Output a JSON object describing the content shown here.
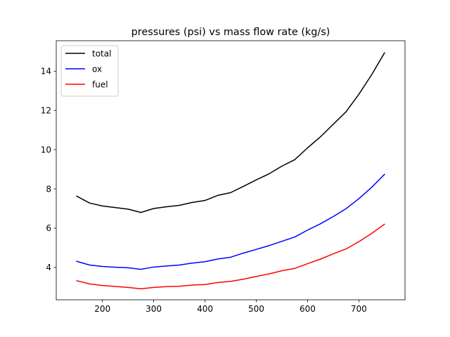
{
  "chart_data": {
    "type": "line",
    "title": "pressures (psi) vs mass flow rate (kg/s)",
    "xlabel": "",
    "ylabel": "",
    "xlim": [
      110,
      790
    ],
    "ylim": [
      2.35,
      15.55
    ],
    "xticks": [
      200,
      300,
      400,
      500,
      600,
      700
    ],
    "yticks": [
      4,
      6,
      8,
      10,
      12,
      14
    ],
    "grid": false,
    "legend_position": "top-left",
    "x": [
      150,
      175,
      200,
      225,
      250,
      275,
      300,
      325,
      350,
      375,
      400,
      425,
      450,
      475,
      500,
      525,
      550,
      575,
      600,
      625,
      650,
      675,
      700,
      725,
      750
    ],
    "series": [
      {
        "name": "total",
        "color": "#000000",
        "values": [
          7.63,
          7.28,
          7.13,
          7.05,
          6.97,
          6.8,
          7.0,
          7.09,
          7.16,
          7.31,
          7.41,
          7.67,
          7.81,
          8.13,
          8.46,
          8.77,
          9.16,
          9.49,
          10.09,
          10.65,
          11.29,
          11.93,
          12.82,
          13.82,
          14.93
        ]
      },
      {
        "name": "ox",
        "color": "#0000ff",
        "values": [
          4.31,
          4.12,
          4.05,
          4.01,
          3.98,
          3.9,
          4.02,
          4.07,
          4.12,
          4.22,
          4.29,
          4.43,
          4.52,
          4.73,
          4.92,
          5.11,
          5.33,
          5.55,
          5.9,
          6.22,
          6.59,
          6.99,
          7.5,
          8.08,
          8.74
        ]
      },
      {
        "name": "fuel",
        "color": "#ff0000",
        "values": [
          3.32,
          3.16,
          3.08,
          3.03,
          2.98,
          2.91,
          2.98,
          3.02,
          3.04,
          3.1,
          3.13,
          3.23,
          3.29,
          3.4,
          3.54,
          3.67,
          3.83,
          3.95,
          4.19,
          4.42,
          4.69,
          4.94,
          5.31,
          5.73,
          6.2
        ]
      }
    ]
  }
}
